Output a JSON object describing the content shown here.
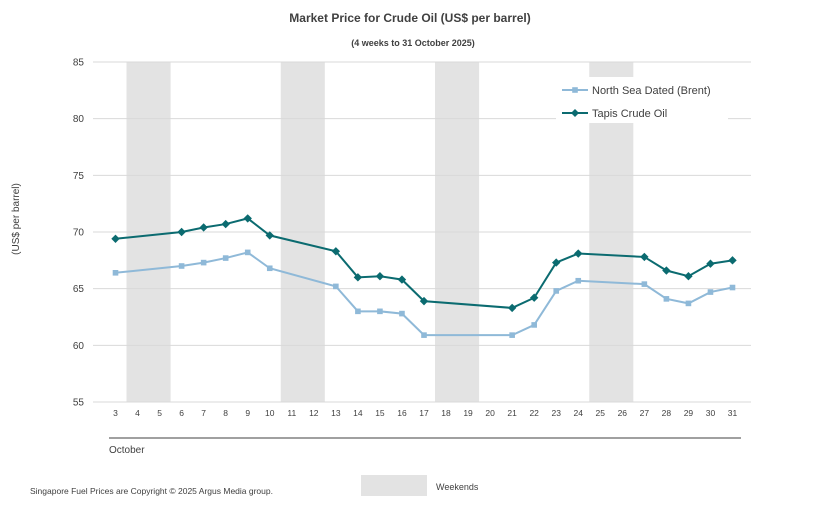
{
  "chart_data": {
    "type": "line",
    "title": "Market Price for Crude  Oil (US$ per barrel)",
    "subtitle": "(4 weeks to 31 October 2025)",
    "ylabel": "(US$ per barrel)",
    "xlabel": "October",
    "ylim": [
      55,
      85
    ],
    "yticks": [
      55,
      60,
      65,
      70,
      75,
      80,
      85
    ],
    "categories": [
      "3",
      "4",
      "5",
      "6",
      "7",
      "8",
      "9",
      "10",
      "11",
      "12",
      "13",
      "14",
      "15",
      "16",
      "17",
      "18",
      "19",
      "20",
      "21",
      "22",
      "23",
      "24",
      "25",
      "26",
      "27",
      "28",
      "29",
      "30",
      "31"
    ],
    "weekend_bands": [
      [
        "4",
        "5"
      ],
      [
        "11",
        "12"
      ],
      [
        "18",
        "19"
      ],
      [
        "25",
        "26"
      ]
    ],
    "series": [
      {
        "name": "North Sea Dated (Brent)",
        "color": "#8fb9d8",
        "marker": "square",
        "points": [
          [
            "3",
            66.4
          ],
          [
            "6",
            67.0
          ],
          [
            "7",
            67.3
          ],
          [
            "8",
            67.7
          ],
          [
            "9",
            68.2
          ],
          [
            "10",
            66.8
          ],
          [
            "13",
            65.2
          ],
          [
            "14",
            63.0
          ],
          [
            "15",
            63.0
          ],
          [
            "16",
            62.8
          ],
          [
            "17",
            60.9
          ],
          [
            "21",
            60.9
          ],
          [
            "22",
            61.8
          ],
          [
            "23",
            64.8
          ],
          [
            "24",
            65.7
          ],
          [
            "27",
            65.4
          ],
          [
            "28",
            64.1
          ],
          [
            "29",
            63.7
          ],
          [
            "30",
            64.7
          ],
          [
            "31",
            65.1
          ]
        ]
      },
      {
        "name": "Tapis Crude Oil",
        "color": "#0b6b70",
        "marker": "diamond",
        "points": [
          [
            "3",
            69.4
          ],
          [
            "6",
            70.0
          ],
          [
            "7",
            70.4
          ],
          [
            "8",
            70.7
          ],
          [
            "9",
            71.2
          ],
          [
            "10",
            69.7
          ],
          [
            "13",
            68.3
          ],
          [
            "14",
            66.0
          ],
          [
            "15",
            66.1
          ],
          [
            "16",
            65.8
          ],
          [
            "17",
            63.9
          ],
          [
            "21",
            63.3
          ],
          [
            "22",
            64.2
          ],
          [
            "23",
            67.3
          ],
          [
            "24",
            68.1
          ],
          [
            "27",
            67.8
          ],
          [
            "28",
            66.6
          ],
          [
            "29",
            66.1
          ],
          [
            "30",
            67.2
          ],
          [
            "31",
            67.5
          ]
        ]
      }
    ],
    "weekend_color": "#e3e3e3",
    "legend_position": "top-right",
    "weekends_label": "Weekends",
    "footnote": "Singapore  Fuel Prices are  Copyright © 2025 Argus Media  group."
  }
}
